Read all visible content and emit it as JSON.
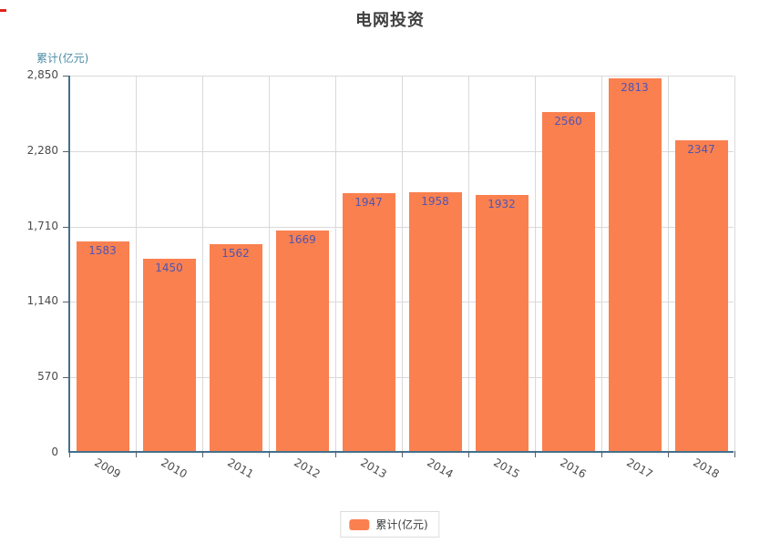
{
  "page": {
    "title": "电网投资"
  },
  "y_axis_title": "累计(亿元)",
  "legend": {
    "label": "累计(亿元)"
  },
  "chart_data": {
    "type": "bar",
    "title": "电网投资",
    "categories": [
      "2009",
      "2010",
      "2011",
      "2012",
      "2013",
      "2014",
      "2015",
      "2016",
      "2017",
      "2018"
    ],
    "values": [
      1583,
      1450,
      1562,
      1669,
      1947,
      1958,
      1932,
      2560,
      2813,
      2347
    ],
    "series": [
      {
        "name": "累计(亿元)",
        "values": [
          1583,
          1450,
          1562,
          1669,
          1947,
          1958,
          1932,
          2560,
          2813,
          2347
        ]
      }
    ],
    "xlabel": "",
    "ylabel": "累计(亿元)",
    "ylim": [
      0,
      2850
    ],
    "yticks": [
      0,
      570,
      1140,
      1710,
      2280,
      2850
    ],
    "ytick_labels": [
      "0",
      "570",
      "1,140",
      "1,710",
      "2,280",
      "2,850"
    ],
    "xtick_rotation_deg": 30,
    "grid": true,
    "legend_entries": [
      "累计(亿元)"
    ],
    "legend_position": "bottom",
    "bar_value_labels": true
  },
  "colors": {
    "bar": "#fa8050",
    "value_label": "#4e55b2",
    "axis": "#44708c",
    "grid": "#d9d9d9",
    "tick_text": "#4a4a4a",
    "y_title": "#4a8ba6",
    "title_text": "#3f3f3f",
    "legend_border": "#dcdcdc",
    "accent_mark": "#e2231a"
  }
}
